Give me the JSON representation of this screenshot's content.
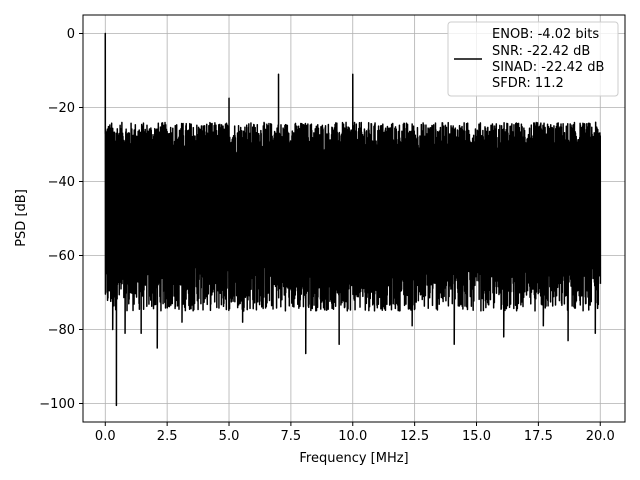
{
  "chart_data": {
    "type": "line",
    "xlabel": "Frequency [MHz]",
    "ylabel": "PSD [dB]",
    "xlim": [
      -0.9,
      21.0
    ],
    "ylim": [
      -105,
      5
    ],
    "x_ticks": [
      0.0,
      2.5,
      5.0,
      7.5,
      10.0,
      12.5,
      15.0,
      17.5,
      20.0
    ],
    "x_tick_labels": [
      "0.0",
      "2.5",
      "5.0",
      "7.5",
      "10.0",
      "12.5",
      "15.0",
      "17.5",
      "20.0"
    ],
    "y_ticks": [
      0,
      -20,
      -40,
      -60,
      -80,
      -100
    ],
    "y_tick_labels": [
      "0",
      "−20",
      "−40",
      "−60",
      "−80",
      "−100"
    ],
    "grid": true,
    "legend_position": "top-right",
    "series": [
      {
        "color": "#000000",
        "legend_lines": [
          "ENOB: -4.02 bits",
          "SNR: -22.42 dB",
          "SINAD: -22.42 dB",
          "SFDR: 11.2"
        ],
        "noise_floor": {
          "upper_envelope_db": -31,
          "lower_envelope_db": -66,
          "upper_range_db": [
            -33,
            -24
          ],
          "lower_range_db": [
            -75,
            -60
          ]
        },
        "peaks": [
          {
            "x": 0.0,
            "y": 0.0
          },
          {
            "x": 5.0,
            "y": -17.5
          },
          {
            "x": 7.0,
            "y": -11.0
          },
          {
            "x": 10.0,
            "y": -11.0
          }
        ],
        "dips": [
          {
            "x": 0.3,
            "y": -80.0
          },
          {
            "x": 0.45,
            "y": -100.5
          },
          {
            "x": 0.8,
            "y": -81.0
          },
          {
            "x": 1.45,
            "y": -81.0
          },
          {
            "x": 2.1,
            "y": -85.0
          },
          {
            "x": 3.1,
            "y": -78.0
          },
          {
            "x": 5.55,
            "y": -78.0
          },
          {
            "x": 8.1,
            "y": -86.5
          },
          {
            "x": 9.45,
            "y": -84.0
          },
          {
            "x": 12.4,
            "y": -79.0
          },
          {
            "x": 14.1,
            "y": -84.0
          },
          {
            "x": 16.1,
            "y": -82.0
          },
          {
            "x": 17.7,
            "y": -79.0
          },
          {
            "x": 18.7,
            "y": -83.0
          },
          {
            "x": 19.8,
            "y": -81.0
          }
        ]
      }
    ]
  }
}
